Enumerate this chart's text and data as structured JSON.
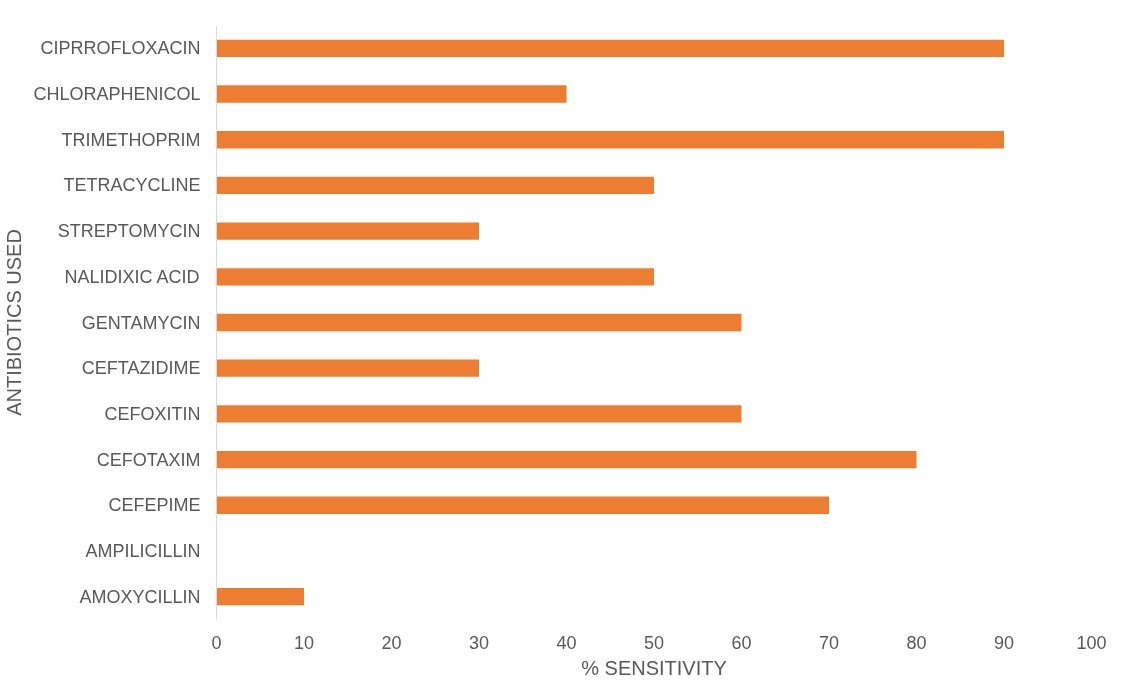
{
  "chart_data": {
    "type": "bar",
    "orientation": "horizontal",
    "xlabel": "% SENSITIVITY",
    "ylabel": "ANTIBIOTICS USED",
    "categories": [
      "CIPRROFLOXACIN",
      "CHLORAPHENICOL",
      "TRIMETHOPRIM",
      "TETRACYCLINE",
      "STREPTOMYCIN",
      "NALIDIXIC ACID",
      "GENTAMYCIN",
      "CEFTAZIDIME",
      "CEFOXITIN",
      "CEFOTAXIM",
      "CEFEPIME",
      "AMPILICILLIN",
      "AMOXYCILLIN"
    ],
    "values": [
      90,
      40,
      90,
      50,
      30,
      50,
      60,
      30,
      60,
      80,
      70,
      0,
      10
    ],
    "color": "#ed7d31",
    "xlim": [
      0,
      100
    ],
    "xticks": [
      0,
      10,
      20,
      30,
      40,
      50,
      60,
      70,
      80,
      90,
      100
    ],
    "grid": false
  }
}
